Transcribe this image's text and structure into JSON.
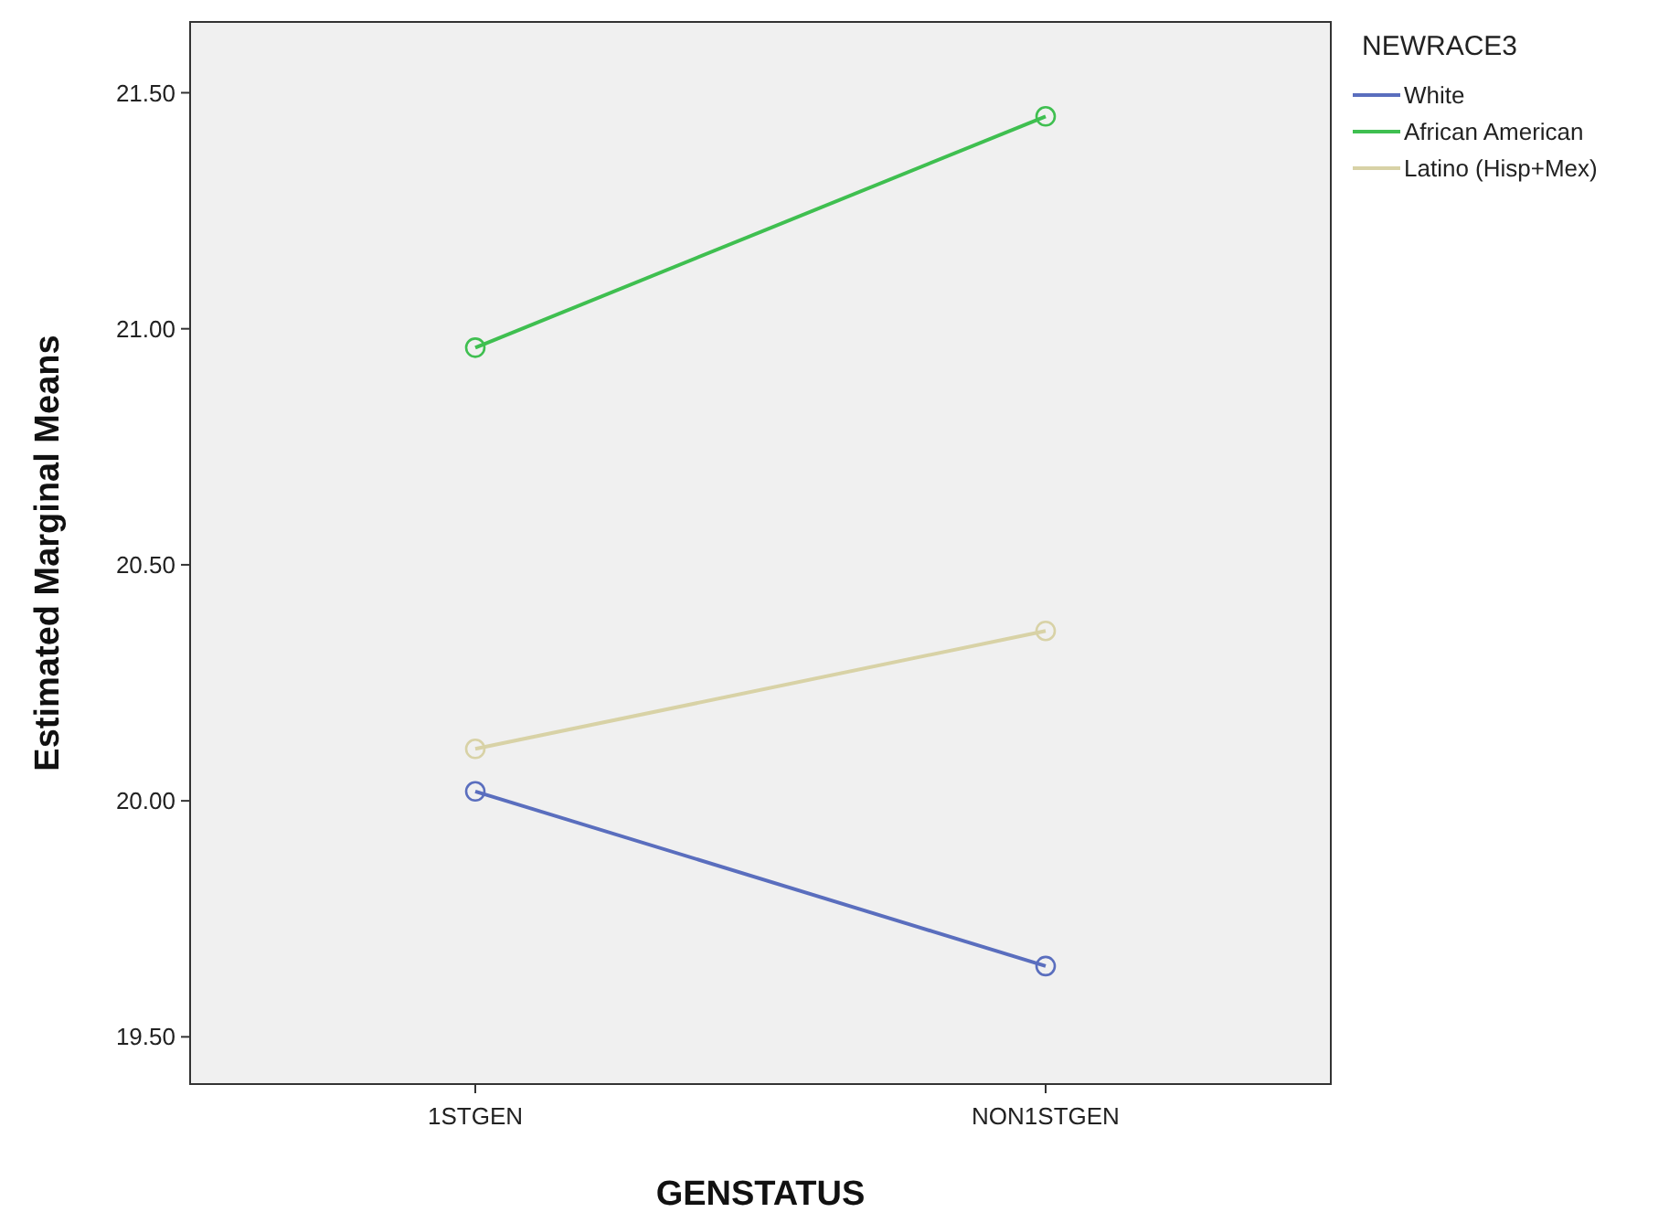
{
  "chart_data": {
    "type": "line",
    "xlabel": "GENSTATUS",
    "ylabel": "Estimated Marginal Means",
    "legend_title": "NEWRACE3",
    "categories": [
      "1STGEN",
      "NON1STGEN"
    ],
    "series": [
      {
        "name": "White",
        "color": "#5a6ebe",
        "values": [
          20.02,
          19.65
        ]
      },
      {
        "name": "African American",
        "color": "#3fbf50",
        "values": [
          20.96,
          21.45
        ]
      },
      {
        "name": "Latino (Hisp+Mex)",
        "color": "#d8d2a6",
        "values": [
          20.11,
          20.36
        ]
      }
    ],
    "ylim": [
      19.4,
      21.65
    ],
    "yticks": [
      {
        "value": 19.5,
        "label": "19.50"
      },
      {
        "value": 20,
        "label": "20.00"
      },
      {
        "value": 20.5,
        "label": "20.50"
      },
      {
        "value": 21,
        "label": "21.00"
      },
      {
        "value": 21.5,
        "label": "21.50"
      }
    ],
    "grid": false,
    "legend": "right",
    "marker": "circle",
    "line_style": "solid"
  }
}
